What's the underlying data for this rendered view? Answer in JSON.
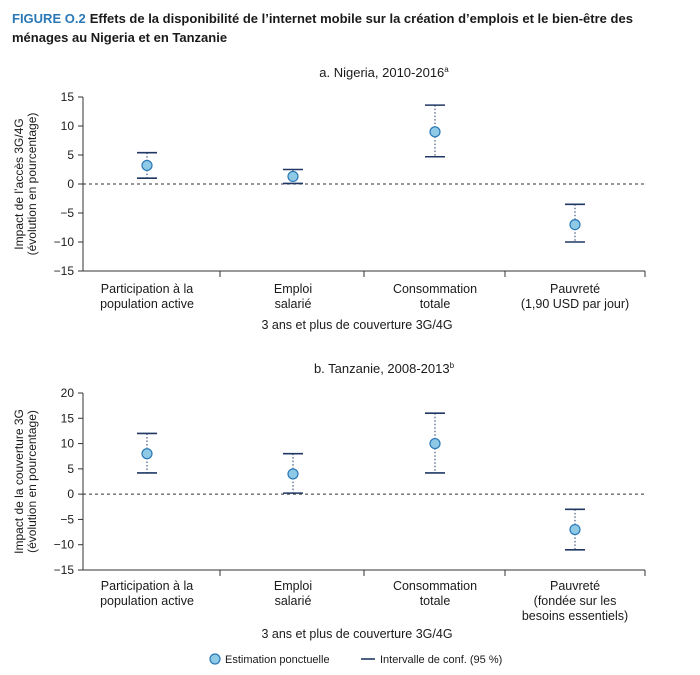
{
  "figure": {
    "label": "FIGURE O.2",
    "title": "Effets de la disponibilité de l’internet mobile sur la création d’emplois et le bien-être des ménages au Nigeria et en Tanzanie"
  },
  "legend": {
    "point_label": "Estimation ponctuelle",
    "ci_label": "Intervalle de conf. (95 %)"
  },
  "colors": {
    "marker_fill": "#8ecae6",
    "marker_stroke": "#2a78b6",
    "ci_line": "#1f3864",
    "axis": "#333333"
  },
  "chart_data": [
    {
      "type": "scatter",
      "title": "a. Nigeria, 2010-2016",
      "title_superscript": "a",
      "xlabel": "3 ans et plus de couverture 3G/4G",
      "ylabel": [
        "Impact de l’accès 3G/4G",
        "(évolution en pourcentage)"
      ],
      "ylim": [
        -15,
        15
      ],
      "yticks": [
        15,
        10,
        5,
        0,
        -5,
        -10,
        -15
      ],
      "reference_line": 0,
      "categories": [
        [
          "Participation à la",
          "population active"
        ],
        [
          "Emploi",
          "salarié"
        ],
        [
          "Consommation",
          "totale"
        ],
        [
          "Pauvreté",
          "(1,90 USD par jour)"
        ]
      ],
      "estimates": [
        3.2,
        1.3,
        9.0,
        -7.0
      ],
      "ci_lower": [
        1.0,
        0.1,
        4.7,
        -10.0
      ],
      "ci_upper": [
        5.4,
        2.5,
        13.6,
        -3.5
      ]
    },
    {
      "type": "scatter",
      "title": "b. Tanzanie, 2008-2013",
      "title_superscript": "b",
      "xlabel": "3 ans et plus de couverture 3G/4G",
      "ylabel": [
        "Impact de la couverture 3G",
        "(évolution en pourcentage)"
      ],
      "ylim": [
        -15,
        20
      ],
      "yticks": [
        20,
        15,
        10,
        5,
        0,
        -5,
        -10,
        -15
      ],
      "reference_line": 0,
      "categories": [
        [
          "Participation à la",
          "population active"
        ],
        [
          "Emploi",
          "salarié"
        ],
        [
          "Consommation",
          "totale"
        ],
        [
          "Pauvreté",
          "(fondée sur les",
          "besoins essentiels)"
        ]
      ],
      "estimates": [
        8.0,
        4.0,
        10.0,
        -7.0
      ],
      "ci_lower": [
        4.2,
        0.2,
        4.2,
        -11.0
      ],
      "ci_upper": [
        12.0,
        8.0,
        16.0,
        -3.0
      ]
    }
  ]
}
